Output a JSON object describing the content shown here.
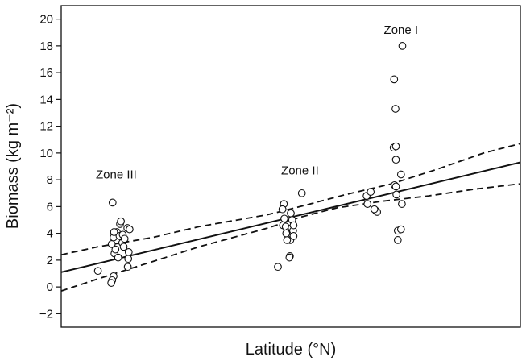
{
  "chart_data": {
    "type": "scatter",
    "xlabel": "Latitude (°N)",
    "ylabel": "Biomass (kg m⁻²)",
    "ylim": [
      -3,
      21
    ],
    "yticks": [
      -2,
      0,
      2,
      4,
      6,
      8,
      10,
      12,
      14,
      16,
      18,
      20
    ],
    "ytick_labels": [
      "−2",
      "0",
      "2",
      "4",
      "6",
      "8",
      "10",
      "12",
      "14",
      "16",
      "18",
      "20"
    ],
    "x_tick_labels_shown": false,
    "xlim": [
      0,
      100
    ],
    "grid": false,
    "legend": "none",
    "annotations": [
      {
        "text": "Zone III",
        "x": 12,
        "y": 8.1
      },
      {
        "text": "Zone II",
        "x": 52,
        "y": 8.4
      },
      {
        "text": "Zone I",
        "x": 74,
        "y": 18.9
      }
    ],
    "points": [
      {
        "x": 11.2,
        "y": 6.3
      },
      {
        "x": 11.0,
        "y": 3.2
      },
      {
        "x": 11.4,
        "y": 3.7
      },
      {
        "x": 11.6,
        "y": 2.5
      },
      {
        "x": 11.8,
        "y": 2.8
      },
      {
        "x": 12.4,
        "y": 2.2
      },
      {
        "x": 12.1,
        "y": 4.1
      },
      {
        "x": 12.8,
        "y": 4.7
      },
      {
        "x": 13.0,
        "y": 4.9
      },
      {
        "x": 12.7,
        "y": 3.8
      },
      {
        "x": 13.3,
        "y": 3.3
      },
      {
        "x": 13.4,
        "y": 3.9
      },
      {
        "x": 13.6,
        "y": 3.0
      },
      {
        "x": 13.8,
        "y": 3.6
      },
      {
        "x": 14.4,
        "y": 4.4
      },
      {
        "x": 14.9,
        "y": 4.3
      },
      {
        "x": 14.7,
        "y": 2.6
      },
      {
        "x": 14.6,
        "y": 2.1
      },
      {
        "x": 14.5,
        "y": 1.5
      },
      {
        "x": 11.4,
        "y": 0.8
      },
      {
        "x": 11.1,
        "y": 0.5
      },
      {
        "x": 10.9,
        "y": 0.3
      },
      {
        "x": 8.0,
        "y": 1.2
      },
      {
        "x": 11.5,
        "y": 4.1
      },
      {
        "x": 48.5,
        "y": 6.2
      },
      {
        "x": 48.2,
        "y": 5.8
      },
      {
        "x": 48.6,
        "y": 5.1
      },
      {
        "x": 48.3,
        "y": 4.6
      },
      {
        "x": 48.9,
        "y": 4.5
      },
      {
        "x": 49.5,
        "y": 4.1
      },
      {
        "x": 49.6,
        "y": 3.7
      },
      {
        "x": 49.9,
        "y": 3.5
      },
      {
        "x": 49.2,
        "y": 3.5
      },
      {
        "x": 50.0,
        "y": 5.5
      },
      {
        "x": 50.2,
        "y": 4.4
      },
      {
        "x": 50.5,
        "y": 4.2
      },
      {
        "x": 50.6,
        "y": 3.8
      },
      {
        "x": 50.3,
        "y": 5.0
      },
      {
        "x": 50.6,
        "y": 4.6
      },
      {
        "x": 49.8,
        "y": 2.3
      },
      {
        "x": 49.7,
        "y": 2.2
      },
      {
        "x": 47.2,
        "y": 1.5
      },
      {
        "x": 52.4,
        "y": 7.0
      },
      {
        "x": 49.0,
        "y": 4.0
      },
      {
        "x": 66.5,
        "y": 6.8
      },
      {
        "x": 66.7,
        "y": 6.2
      },
      {
        "x": 67.4,
        "y": 7.1
      },
      {
        "x": 68.5,
        "y": 5.7
      },
      {
        "x": 68.8,
        "y": 5.6
      },
      {
        "x": 68.2,
        "y": 5.8
      },
      {
        "x": 72.5,
        "y": 15.5
      },
      {
        "x": 72.8,
        "y": 13.3
      },
      {
        "x": 72.4,
        "y": 10.4
      },
      {
        "x": 72.9,
        "y": 10.5
      },
      {
        "x": 72.9,
        "y": 9.5
      },
      {
        "x": 72.6,
        "y": 7.6
      },
      {
        "x": 72.9,
        "y": 7.5
      },
      {
        "x": 73.0,
        "y": 6.9
      },
      {
        "x": 73.3,
        "y": 4.2
      },
      {
        "x": 73.3,
        "y": 3.5
      },
      {
        "x": 74.0,
        "y": 4.3
      },
      {
        "x": 74.3,
        "y": 18.0
      },
      {
        "x": 74.0,
        "y": 8.4
      },
      {
        "x": 74.2,
        "y": 6.2
      }
    ],
    "lines": [
      {
        "style": "solid",
        "x": [
          0,
          100
        ],
        "y": [
          1.1,
          9.3
        ]
      },
      {
        "style": "dashed",
        "x": [
          0,
          8,
          20,
          30,
          45,
          52,
          62,
          72,
          82,
          92,
          100
        ],
        "y": [
          2.4,
          3.0,
          3.7,
          4.5,
          5.4,
          6.0,
          6.9,
          7.7,
          8.8,
          10.0,
          10.7
        ]
      },
      {
        "style": "dashed",
        "x": [
          0,
          8,
          20,
          30,
          45,
          52,
          60,
          70,
          80,
          90,
          100
        ],
        "y": [
          -0.3,
          0.6,
          1.9,
          3.0,
          4.4,
          5.2,
          5.9,
          6.4,
          6.8,
          7.3,
          7.7
        ]
      }
    ]
  }
}
